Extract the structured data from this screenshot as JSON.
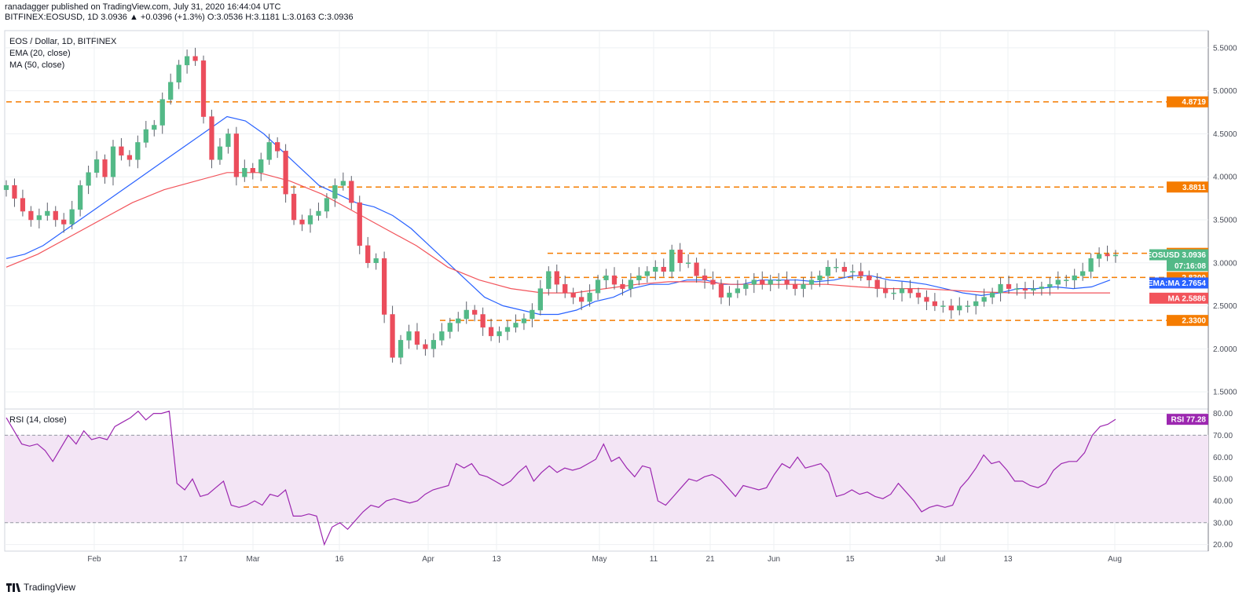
{
  "header": {
    "line1": "ranadagger published on TradingView.com, July 31, 2020 16:44:04 UTC",
    "line2": "BITFINEX:EOSUSD, 1D  3.0936  ▲ +0.0396 (+1.3%)  O:3.0536  H:3.1181  L:3.0163  C:3.0936"
  },
  "legend": {
    "title": "EOS / Dollar, 1D, BITFINEX",
    "ema": "EMA (20, close)",
    "ma": "MA (50, close)",
    "rsi": "RSI (14, close)"
  },
  "footer": {
    "brand": "TradingView"
  },
  "colors": {
    "up": "#53b987",
    "down": "#eb4d5c",
    "ema": "#2962ff",
    "ma": "#f2545b",
    "rsi": "#9c27b0",
    "level": "#f57c00",
    "rsi_band": "#f3e5f5"
  },
  "chart_data": [
    {
      "type": "candlestick",
      "title": "EOS / Dollar, 1D, BITFINEX",
      "x_ticks": [
        "Feb",
        "17",
        "Mar",
        "16",
        "Apr",
        "13",
        "May",
        "11",
        "21",
        "Jun",
        "15",
        "Jul",
        "13",
        "Aug"
      ],
      "y_ticks": [
        "1.5000",
        "2.0000",
        "2.5000",
        "3.0000",
        "3.5000",
        "4.0000",
        "4.5000",
        "5.0000",
        "5.5000"
      ],
      "ylim": [
        1.3,
        5.7
      ],
      "grid": true,
      "horizontal_levels": [
        {
          "label": "4.8719",
          "value": 4.8719
        },
        {
          "label": "3.8811",
          "value": 3.8811
        },
        {
          "label": "3.1104",
          "value": 3.1104
        },
        {
          "label": "2.8300",
          "value": 2.83
        },
        {
          "label": "2.3300",
          "value": 2.33
        }
      ],
      "badges": [
        {
          "label": "EOSUSD",
          "value": "3.0936",
          "price": 3.0936,
          "color": "#53b987"
        },
        {
          "label": "",
          "value": "07:16:08",
          "price": 2.968,
          "color": "#53b987"
        },
        {
          "label": "EMA:MA",
          "value": "2.7654",
          "price": 2.7654,
          "color": "#2962ff"
        },
        {
          "label": "MA",
          "value": "2.5886",
          "price": 2.5886,
          "color": "#f2545b"
        }
      ],
      "series": [
        {
          "name": "EOSUSD",
          "kind": "ohlc",
          "close": [
            3.9,
            3.75,
            3.6,
            3.5,
            3.55,
            3.6,
            3.5,
            3.45,
            3.62,
            3.9,
            4.05,
            4.2,
            4.0,
            4.35,
            4.25,
            4.2,
            4.4,
            4.55,
            4.6,
            4.9,
            5.1,
            5.3,
            5.4,
            5.35,
            4.7,
            4.2,
            4.35,
            4.5,
            4.0,
            4.1,
            4.05,
            4.2,
            4.4,
            4.3,
            3.8,
            3.5,
            3.45,
            3.55,
            3.6,
            3.75,
            3.9,
            3.95,
            3.7,
            3.2,
            3.0,
            3.05,
            2.4,
            1.9,
            2.1,
            2.2,
            2.05,
            2.0,
            2.1,
            2.2,
            2.3,
            2.35,
            2.45,
            2.4,
            2.25,
            2.15,
            2.2,
            2.25,
            2.3,
            2.35,
            2.45,
            2.7,
            2.9,
            2.75,
            2.65,
            2.6,
            2.55,
            2.65,
            2.8,
            2.85,
            2.75,
            2.7,
            2.8,
            2.85,
            2.9,
            2.95,
            2.9,
            3.15,
            3.0,
            3.0,
            2.85,
            2.8,
            2.75,
            2.6,
            2.65,
            2.7,
            2.75,
            2.8,
            2.75,
            2.8,
            2.8,
            2.75,
            2.7,
            2.75,
            2.8,
            2.85,
            2.95,
            2.95,
            2.9,
            2.9,
            2.85,
            2.8,
            2.7,
            2.65,
            2.65,
            2.7,
            2.65,
            2.6,
            2.55,
            2.5,
            2.5,
            2.45,
            2.5,
            2.5,
            2.55,
            2.6,
            2.65,
            2.75,
            2.7,
            2.7,
            2.68,
            2.7,
            2.72,
            2.75,
            2.8,
            2.8,
            2.85,
            2.9,
            3.05,
            3.1,
            3.08,
            3.09
          ]
        }
      ],
      "ema20": [
        3.05,
        3.1,
        3.2,
        3.35,
        3.5,
        3.65,
        3.8,
        3.95,
        4.1,
        4.25,
        4.4,
        4.55,
        4.7,
        4.65,
        4.5,
        4.3,
        4.1,
        3.9,
        3.8,
        3.7,
        3.65,
        3.55,
        3.4,
        3.2,
        3.0,
        2.8,
        2.6,
        2.5,
        2.45,
        2.4,
        2.4,
        2.45,
        2.55,
        2.6,
        2.7,
        2.75,
        2.75,
        2.8,
        2.8,
        2.75,
        2.75,
        2.8,
        2.8,
        2.8,
        2.78,
        2.8,
        2.85,
        2.85,
        2.8,
        2.78,
        2.75,
        2.7,
        2.65,
        2.62,
        2.65,
        2.7,
        2.7,
        2.72,
        2.7,
        2.72,
        2.8
      ],
      "ma50": [
        2.95,
        3.1,
        3.3,
        3.5,
        3.7,
        3.85,
        3.95,
        4.05,
        4.05,
        3.95,
        3.8,
        3.6,
        3.4,
        3.2,
        2.95,
        2.8,
        2.7,
        2.65,
        2.65,
        2.7,
        2.75,
        2.78,
        2.78,
        2.75,
        2.75,
        2.75,
        2.75,
        2.72,
        2.7,
        2.7,
        2.68,
        2.66,
        2.65,
        2.65,
        2.65,
        2.65
      ]
    },
    {
      "type": "line",
      "title": "RSI (14, close)",
      "y_ticks": [
        "20.00",
        "30.00",
        "40.00",
        "50.00",
        "60.00",
        "70.00",
        "80.00"
      ],
      "ylim": [
        17,
        82
      ],
      "band": [
        30,
        70
      ],
      "last_label": "RSI",
      "last_value": "77.28",
      "series": [
        {
          "name": "RSI",
          "values": [
            78,
            72,
            66,
            65,
            66,
            63,
            58,
            64,
            70,
            66,
            72,
            68,
            69,
            68,
            74,
            76,
            78,
            81,
            77,
            80,
            80,
            81,
            48,
            45,
            50,
            42,
            43,
            46,
            49,
            38,
            37,
            38,
            40,
            38,
            43,
            42,
            45,
            33,
            33,
            34,
            33,
            20,
            28,
            30,
            27,
            31,
            35,
            38,
            37,
            40,
            41,
            40,
            39,
            40,
            43,
            45,
            46,
            47,
            57,
            55,
            57,
            52,
            51,
            49,
            47,
            49,
            53,
            56,
            49,
            53,
            56,
            53,
            55,
            54,
            55,
            57,
            59,
            66,
            58,
            60,
            55,
            51,
            56,
            55,
            40,
            38,
            42,
            46,
            50,
            49,
            51,
            52,
            50,
            46,
            42,
            47,
            46,
            45,
            46,
            52,
            57,
            55,
            60,
            55,
            56,
            57,
            53,
            42,
            43,
            45,
            43,
            44,
            42,
            41,
            43,
            48,
            44,
            40,
            35,
            37,
            38,
            37,
            38,
            46,
            50,
            55,
            61,
            57,
            58,
            54,
            49,
            49,
            47,
            46,
            48,
            54,
            57,
            58,
            58,
            62,
            70,
            74,
            75,
            77.28
          ]
        }
      ]
    }
  ]
}
